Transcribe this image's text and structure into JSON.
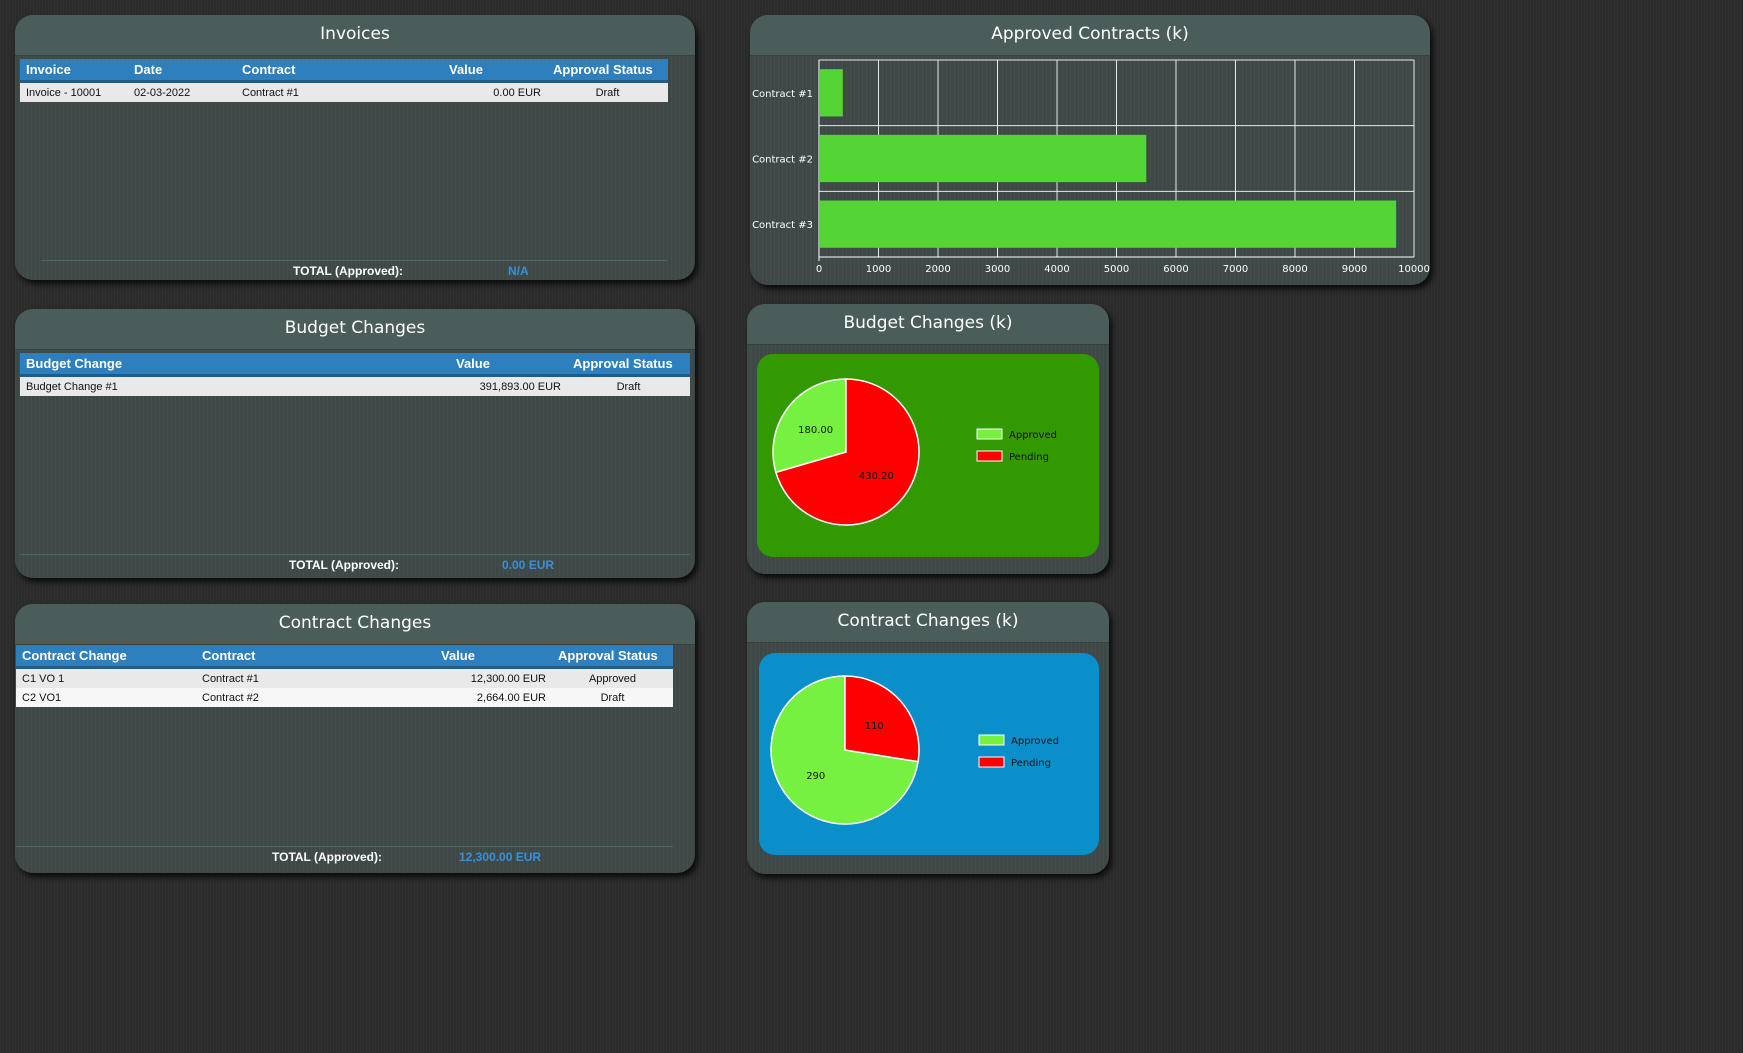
{
  "invoices": {
    "title": "Invoices",
    "columns": [
      "Invoice",
      "Date",
      "Contract",
      "Value",
      "Approval Status"
    ],
    "rows": [
      {
        "invoice": "Invoice - 10001",
        "date": "02-03-2022",
        "contract": "Contract #1",
        "value": "0.00 EUR",
        "status": "Draft"
      }
    ],
    "total_label": "TOTAL (Approved):",
    "total_value": "N/A"
  },
  "budget_changes": {
    "title": "Budget Changes",
    "columns": [
      "Budget Change",
      "Value",
      "Approval Status"
    ],
    "rows": [
      {
        "name": "Budget Change #1",
        "value": "391,893.00 EUR",
        "status": "Draft"
      }
    ],
    "total_label": "TOTAL (Approved):",
    "total_value": "0.00 EUR"
  },
  "contract_changes": {
    "title": "Contract Changes",
    "columns": [
      "Contract Change",
      "Contract",
      "Value",
      "Approval Status"
    ],
    "rows": [
      {
        "name": "C1 VO 1",
        "contract": "Contract #1",
        "value": "12,300.00 EUR",
        "status": "Approved"
      },
      {
        "name": "C2 VO1",
        "contract": "Contract #2",
        "value": "2,664.00 EUR",
        "status": "Draft"
      }
    ],
    "total_label": "TOTAL (Approved):",
    "total_value": "12,300.00 EUR"
  },
  "approved_contracts_chart": {
    "title": "Approved Contracts (k)"
  },
  "budget_changes_chart": {
    "title": "Budget Changes (k)",
    "background": "#339900",
    "legend": [
      "Approved",
      "Pending"
    ]
  },
  "contract_changes_chart": {
    "title": "Contract Changes (k)",
    "background": "#0a8fcb",
    "legend": [
      "Approved",
      "Pending"
    ]
  },
  "chart_data": [
    {
      "type": "bar",
      "orientation": "horizontal",
      "title": "Approved Contracts (k)",
      "categories": [
        "Contract #1",
        "Contract #2",
        "Contract #3"
      ],
      "values": [
        400,
        5500,
        9700
      ],
      "xlim": [
        0,
        10000
      ],
      "xticks": [
        0,
        1000,
        2000,
        3000,
        4000,
        5000,
        6000,
        7000,
        8000,
        9000,
        10000
      ],
      "grid": true,
      "color": "#55d535"
    },
    {
      "type": "pie",
      "title": "Budget Changes (k)",
      "labels": [
        "Approved",
        "Pending"
      ],
      "values": [
        180.0,
        430.2
      ],
      "data_labels": [
        "180.00",
        "430.20"
      ],
      "colors": [
        "#77f13f",
        "#ff0000"
      ],
      "legend": "right"
    },
    {
      "type": "pie",
      "title": "Contract Changes (k)",
      "labels": [
        "Approved",
        "Pending"
      ],
      "values": [
        290,
        110
      ],
      "data_labels": [
        "290",
        "110"
      ],
      "colors": [
        "#77f13f",
        "#ff0000"
      ],
      "legend": "right"
    }
  ]
}
